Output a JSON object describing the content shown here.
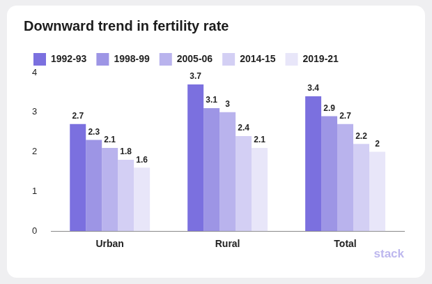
{
  "chart_data": {
    "type": "bar",
    "title": "Downward trend in fertility rate",
    "categories": [
      "Urban",
      "Rural",
      "Total"
    ],
    "series": [
      {
        "name": "1992-93",
        "color": "#7b70df",
        "values": [
          2.7,
          3.7,
          3.4
        ]
      },
      {
        "name": "1998-99",
        "color": "#9d95e5",
        "values": [
          2.3,
          3.1,
          2.9
        ]
      },
      {
        "name": "2005-06",
        "color": "#b9b3ed",
        "values": [
          2.1,
          3,
          2.7
        ]
      },
      {
        "name": "2014-15",
        "color": "#d3cff4",
        "values": [
          1.8,
          2.4,
          2.2
        ]
      },
      {
        "name": "2019-21",
        "color": "#e8e6f9",
        "values": [
          1.6,
          2.1,
          2
        ]
      }
    ],
    "ylim": [
      0,
      4
    ],
    "yticks": [
      0,
      1,
      2,
      3,
      4
    ],
    "grid": false,
    "legend": "top-left",
    "data_labels": true,
    "annotations": [
      "stack"
    ]
  }
}
